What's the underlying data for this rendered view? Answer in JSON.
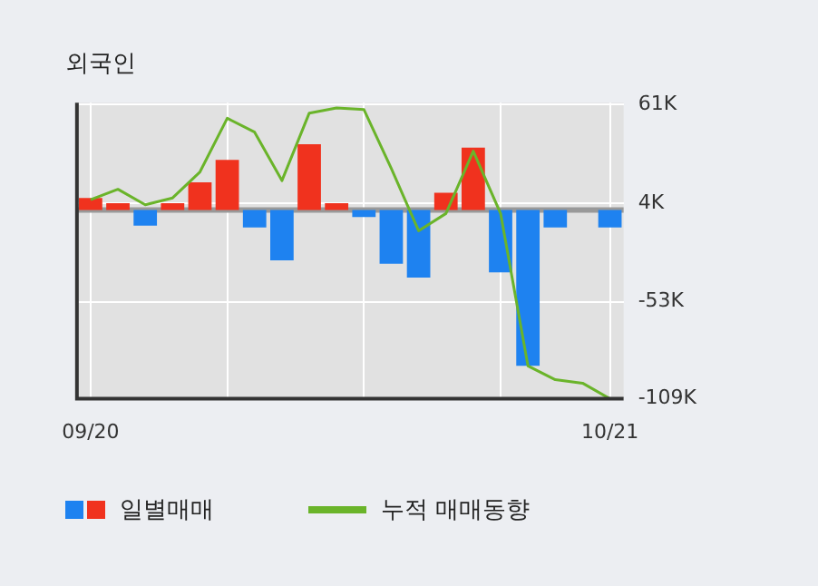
{
  "chart_data": {
    "type": "bar",
    "title": "외국인",
    "categories": [
      "09/20",
      null,
      null,
      null,
      null,
      null,
      null,
      null,
      null,
      null,
      null,
      null,
      null,
      null,
      null,
      null,
      null,
      null,
      null,
      "10/21"
    ],
    "series": [
      {
        "name": "일별매매",
        "colors": [
          "#f0321e",
          "#f0321e",
          "#1e82f0",
          "#f0321e",
          "#f0321e",
          "#f0321e",
          "#1e82f0",
          "#1e82f0",
          "#f0321e",
          "#f0321e",
          "#1e82f0",
          "#1e82f0",
          "#1e82f0",
          "#f0321e",
          "#f0321e",
          "#1e82f0",
          "#1e82f0",
          "#1e82f0",
          "#1e82f0",
          "#1e82f0"
        ],
        "values": [
          7,
          4,
          -9,
          4,
          16,
          29,
          -10,
          -29,
          38,
          4,
          -4,
          -31,
          -39,
          10,
          36,
          -36,
          -90,
          -10,
          null,
          -10
        ]
      },
      {
        "name": "누적 매매동향",
        "type": "line",
        "color": "#6ab42a",
        "values": [
          6,
          12,
          3,
          7,
          22,
          53,
          45,
          17,
          56,
          59,
          58,
          24,
          -12,
          -2,
          34,
          -2,
          -90,
          -98,
          -100,
          -109
        ]
      }
    ],
    "ylim": [
      -109,
      62
    ],
    "yticks": [
      {
        "value": 61,
        "label": "61K"
      },
      {
        "value": 4,
        "label": "4K"
      },
      {
        "value": -53,
        "label": "-53K"
      },
      {
        "value": -109,
        "label": "-109K"
      }
    ],
    "ref_lines": [
      {
        "axis": "y",
        "value": 0,
        "color": "#999999"
      }
    ],
    "grid": true,
    "legend": "bottom",
    "marker": "none"
  }
}
